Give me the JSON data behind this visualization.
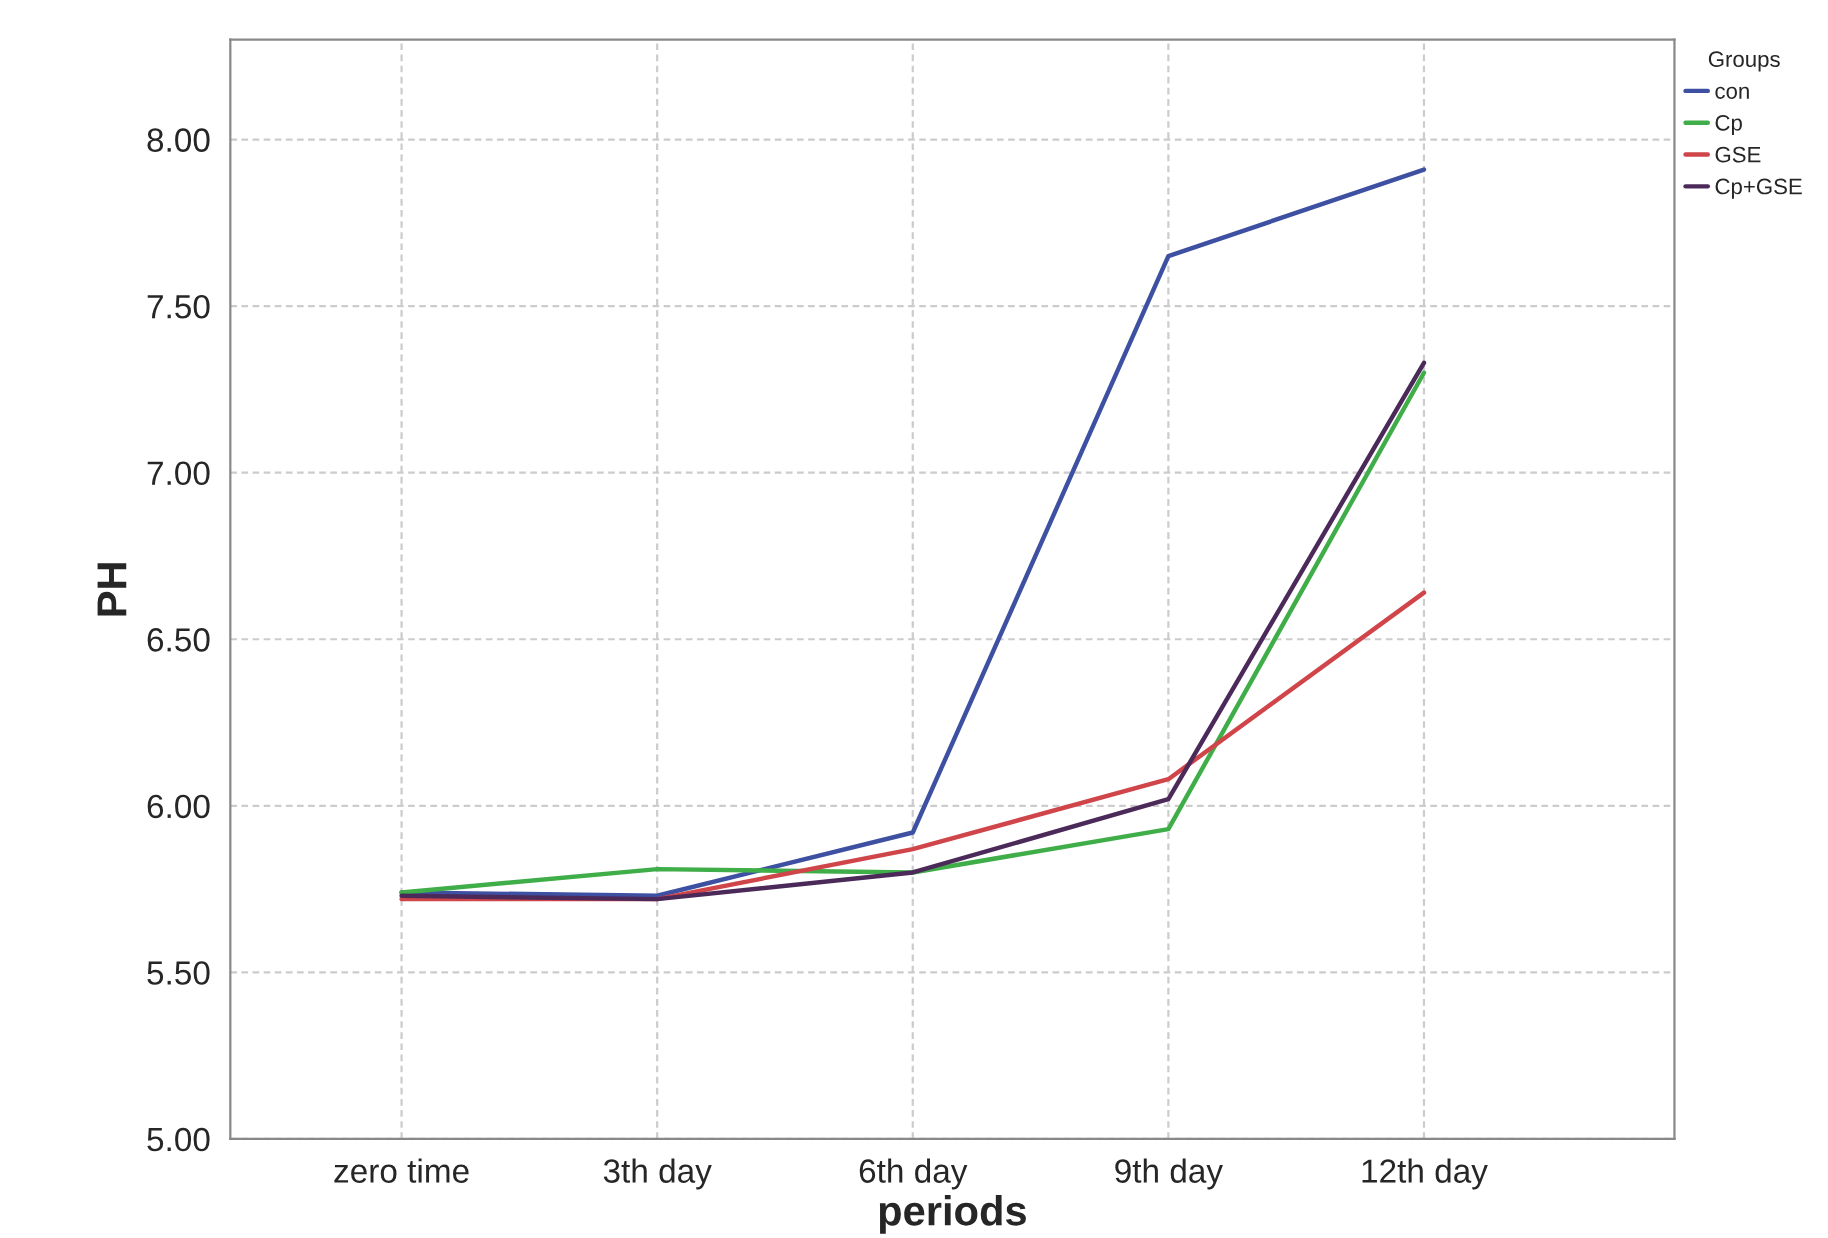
{
  "chart_data": {
    "type": "line",
    "xlabel": "periods",
    "ylabel": "PH",
    "legend_title": "Groups",
    "legend": "top right",
    "grid": true,
    "categories": [
      "zero time",
      "3th day",
      "6th day",
      "9th day",
      "12th day"
    ],
    "series": [
      {
        "name": "con",
        "color": "#3e50a2",
        "values": [
          5.74,
          5.73,
          5.92,
          7.65,
          7.91
        ]
      },
      {
        "name": "Cp",
        "color": "#3fae49",
        "values": [
          5.74,
          5.81,
          5.8,
          5.93,
          7.3
        ]
      },
      {
        "name": "GSE",
        "color": "#d0454a",
        "values": [
          5.72,
          5.72,
          5.87,
          6.08,
          6.64
        ]
      },
      {
        "name": "Cp+GSE",
        "color": "#4b2a5a",
        "values": [
          5.73,
          5.72,
          5.8,
          6.02,
          7.33
        ]
      }
    ],
    "ylim": [
      5.0,
      8.3
    ],
    "yticks": [
      {
        "value": 5.0,
        "label": "5.00"
      },
      {
        "value": 5.5,
        "label": "5.50"
      },
      {
        "value": 6.0,
        "label": "6.00"
      },
      {
        "value": 6.5,
        "label": "6.50"
      },
      {
        "value": 7.0,
        "label": "7.00"
      },
      {
        "value": 7.5,
        "label": "7.50"
      },
      {
        "value": 8.0,
        "label": "8.00"
      }
    ]
  }
}
